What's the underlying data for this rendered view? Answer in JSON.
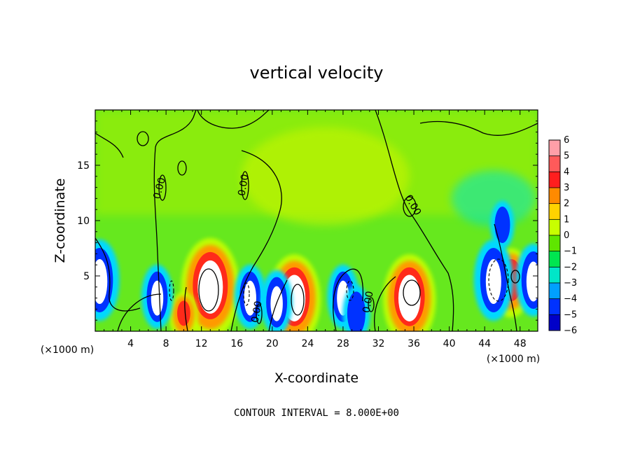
{
  "chart_data": {
    "type": "heatmap",
    "title": "vertical velocity",
    "xlabel": "X-coordinate",
    "ylabel": "Z-coordinate",
    "x_unit_label": "(×1000 m)",
    "x_unit_label_right": "(×1000 m)",
    "xlim": [
      0,
      50
    ],
    "ylim": [
      0,
      20
    ],
    "x_ticks": [
      4,
      8,
      12,
      16,
      20,
      24,
      28,
      32,
      36,
      40,
      44,
      48
    ],
    "y_ticks": [
      5,
      10,
      15
    ],
    "contour_interval_text": "CONTOUR INTERVAL = 8.000E+00",
    "contour_label": "0.00",
    "colorbar": {
      "levels": [
        6,
        5,
        4,
        3,
        2,
        1,
        0,
        -1,
        -2,
        -3,
        -4,
        -5,
        -6
      ],
      "colors": [
        "#ff9fa8",
        "#ff5a5a",
        "#ff1e1e",
        "#ff8a00",
        "#ffd200",
        "#c8ff00",
        "#5fe600",
        "#00e650",
        "#00e6c8",
        "#00a0ff",
        "#0032ff",
        "#0000c8",
        "#9600c8"
      ]
    },
    "updrafts": [
      {
        "x": 13,
        "z": 4.5,
        "w": 8
      },
      {
        "x": 22.5,
        "z": 3.5,
        "w": 7
      },
      {
        "x": 35.5,
        "z": 3.5,
        "w": 7
      },
      {
        "x": 47,
        "z": 5,
        "w": 5
      },
      {
        "x": 10,
        "z": 2,
        "w": 3
      }
    ],
    "downdrafts": [
      {
        "x": 0.5,
        "z": 5,
        "w": -8
      },
      {
        "x": 7,
        "z": 3.5,
        "w": -6
      },
      {
        "x": 17.5,
        "z": 3.5,
        "w": -6
      },
      {
        "x": 20.5,
        "z": 3,
        "w": -6
      },
      {
        "x": 28,
        "z": 3.5,
        "w": -6
      },
      {
        "x": 29.5,
        "z": 2,
        "w": -5
      },
      {
        "x": 45,
        "z": 5,
        "w": -8
      },
      {
        "x": 49.5,
        "z": 5,
        "w": -7
      },
      {
        "x": 46,
        "z": 10,
        "w": -4
      }
    ],
    "grid": false,
    "legend_position": "right"
  }
}
